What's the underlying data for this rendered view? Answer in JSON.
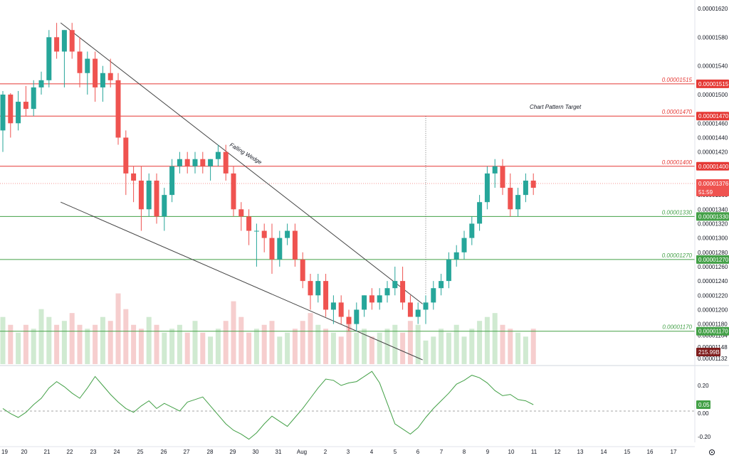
{
  "chart_data": [
    {
      "type": "candlestick",
      "title": "",
      "colors": {
        "up": "#26a69a",
        "down": "#ef5350",
        "volume_up": "#c8e6c9",
        "volume_down": "#f5c6c6",
        "resistance": "#e53935",
        "support": "#43a047",
        "trendline": "#444444"
      },
      "price_axis": {
        "ylim": [
          1.13e-05,
          1.62e-05
        ],
        "tick_labels": [
          "0.00001620",
          "0.00001580",
          "0.00001540",
          "0.00001500",
          "0.00001460",
          "0.00001440",
          "0.00001420",
          "0.00001360",
          "0.00001340",
          "0.00001320",
          "0.00001300",
          "0.00001280",
          "0.00001260",
          "0.00001240",
          "0.00001220",
          "0.00001200",
          "0.00001180",
          "0.00001164",
          "0.00001148",
          "0.00001132"
        ]
      },
      "time_axis": {
        "tick_labels": [
          "19",
          "20",
          "21",
          "22",
          "23",
          "24",
          "25",
          "26",
          "27",
          "28",
          "29",
          "30",
          "31",
          "Aug",
          "2",
          "3",
          "4",
          "5",
          "6",
          "7",
          "8",
          "9",
          "10",
          "11",
          "12",
          "13",
          "14",
          "15",
          "16",
          "17"
        ]
      },
      "levels": [
        {
          "name": "resistance",
          "value": 1.515e-05,
          "label": "0.00001515"
        },
        {
          "name": "resistance",
          "value": 1.47e-05,
          "label": "0.00001470"
        },
        {
          "name": "resistance",
          "value": 1.4e-05,
          "label": "0.00001400"
        },
        {
          "name": "support",
          "value": 1.33e-05,
          "label": "0.00001330"
        },
        {
          "name": "support",
          "value": 1.27e-05,
          "label": "0.00001270"
        },
        {
          "name": "support",
          "value": 1.17e-05,
          "label": "0.00001170"
        }
      ],
      "current_price": {
        "value": 1.376e-05,
        "label": "0.00001376",
        "countdown": "51:59"
      },
      "volume_label": "215.99B",
      "annotations": {
        "pattern": "Falling Wedge",
        "target": "Chart Pattern Target"
      },
      "trendlines": [
        {
          "name": "wedge-upper",
          "from": {
            "x": 21.6,
            "y": 1.6e-05
          },
          "to": {
            "x": 6.2,
            "y": 1.208e-05
          }
        },
        {
          "name": "wedge-lower",
          "from": {
            "x": 21.6,
            "y": 1.35e-05
          },
          "to": {
            "x": 6.2,
            "y": 1.13e-05
          }
        }
      ],
      "candles": [
        [
          1.45e-05,
          1.505e-05,
          1.42e-05,
          1.5e-05
        ],
        [
          1.5e-05,
          1.502e-05,
          1.44e-05,
          1.46e-05
        ],
        [
          1.46e-05,
          1.505e-05,
          1.45e-05,
          1.49e-05
        ],
        [
          1.49e-05,
          1.512e-05,
          1.47e-05,
          1.48e-05
        ],
        [
          1.48e-05,
          1.52e-05,
          1.47e-05,
          1.51e-05
        ],
        [
          1.51e-05,
          1.532e-05,
          1.5e-05,
          1.52e-05
        ],
        [
          1.52e-05,
          1.59e-05,
          1.51e-05,
          1.58e-05
        ],
        [
          1.58e-05,
          1.6e-05,
          1.55e-05,
          1.56e-05
        ],
        [
          1.56e-05,
          1.59e-05,
          1.51e-05,
          1.59e-05
        ],
        [
          1.59e-05,
          1.6e-05,
          1.55e-05,
          1.56e-05
        ],
        [
          1.56e-05,
          1.58e-05,
          1.51e-05,
          1.53e-05
        ],
        [
          1.53e-05,
          1.56e-05,
          1.5e-05,
          1.55e-05
        ],
        [
          1.55e-05,
          1.56e-05,
          1.49e-05,
          1.51e-05
        ],
        [
          1.51e-05,
          1.54e-05,
          1.49e-05,
          1.53e-05
        ],
        [
          1.53e-05,
          1.55e-05,
          1.51e-05,
          1.52e-05
        ],
        [
          1.52e-05,
          1.53e-05,
          1.43e-05,
          1.44e-05
        ],
        [
          1.44e-05,
          1.45e-05,
          1.36e-05,
          1.39e-05
        ],
        [
          1.39e-05,
          1.4e-05,
          1.35e-05,
          1.38e-05
        ],
        [
          1.38e-05,
          1.4e-05,
          1.31e-05,
          1.34e-05
        ],
        [
          1.34e-05,
          1.39e-05,
          1.33e-05,
          1.38e-05
        ],
        [
          1.38e-05,
          1.39e-05,
          1.32e-05,
          1.33e-05
        ],
        [
          1.33e-05,
          1.37e-05,
          1.31e-05,
          1.36e-05
        ],
        [
          1.36e-05,
          1.41e-05,
          1.35e-05,
          1.4e-05
        ],
        [
          1.4e-05,
          1.42e-05,
          1.39e-05,
          1.41e-05
        ],
        [
          1.41e-05,
          1.42e-05,
          1.39e-05,
          1.4e-05
        ],
        [
          1.4e-05,
          1.42e-05,
          1.39e-05,
          1.41e-05
        ],
        [
          1.41e-05,
          1.42e-05,
          1.39e-05,
          1.4e-05
        ],
        [
          1.4e-05,
          1.41e-05,
          1.38e-05,
          1.41e-05
        ],
        [
          1.41e-05,
          1.43e-05,
          1.4e-05,
          1.42e-05
        ],
        [
          1.42e-05,
          1.43e-05,
          1.38e-05,
          1.39e-05
        ],
        [
          1.39e-05,
          1.4e-05,
          1.33e-05,
          1.34e-05
        ],
        [
          1.34e-05,
          1.35e-05,
          1.31e-05,
          1.33e-05
        ],
        [
          1.33e-05,
          1.34e-05,
          1.29e-05,
          1.31e-05
        ],
        [
          1.31e-05,
          1.32e-05,
          1.26e-05,
          1.31e-05
        ],
        [
          1.31e-05,
          1.32e-05,
          1.28e-05,
          1.3e-05
        ],
        [
          1.3e-05,
          1.32e-05,
          1.25e-05,
          1.27e-05
        ],
        [
          1.27e-05,
          1.31e-05,
          1.26e-05,
          1.3e-05
        ],
        [
          1.3e-05,
          1.32e-05,
          1.29e-05,
          1.31e-05
        ],
        [
          1.31e-05,
          1.32e-05,
          1.26e-05,
          1.27e-05
        ],
        [
          1.27e-05,
          1.28e-05,
          1.23e-05,
          1.24e-05
        ],
        [
          1.24e-05,
          1.25e-05,
          1.2e-05,
          1.22e-05
        ],
        [
          1.22e-05,
          1.25e-05,
          1.21e-05,
          1.24e-05
        ],
        [
          1.24e-05,
          1.25e-05,
          1.19e-05,
          1.2e-05
        ],
        [
          1.2e-05,
          1.22e-05,
          1.18e-05,
          1.21e-05
        ],
        [
          1.21e-05,
          1.22e-05,
          1.18e-05,
          1.19e-05
        ],
        [
          1.19e-05,
          1.2e-05,
          1.17e-05,
          1.18e-05
        ],
        [
          1.18e-05,
          1.21e-05,
          1.17e-05,
          1.2e-05
        ],
        [
          1.2e-05,
          1.22e-05,
          1.19e-05,
          1.22e-05
        ],
        [
          1.22e-05,
          1.23e-05,
          1.2e-05,
          1.21e-05
        ],
        [
          1.21e-05,
          1.23e-05,
          1.2e-05,
          1.22e-05
        ],
        [
          1.22e-05,
          1.24e-05,
          1.21e-05,
          1.23e-05
        ],
        [
          1.23e-05,
          1.26e-05,
          1.22e-05,
          1.24e-05
        ],
        [
          1.24e-05,
          1.26e-05,
          1.2e-05,
          1.21e-05
        ],
        [
          1.21e-05,
          1.22e-05,
          1.19e-05,
          1.19e-05
        ],
        [
          1.19e-05,
          1.21e-05,
          1.18e-05,
          1.2e-05
        ],
        [
          1.2e-05,
          1.22e-05,
          1.18e-05,
          1.21e-05
        ],
        [
          1.21e-05,
          1.24e-05,
          1.2e-05,
          1.23e-05
        ],
        [
          1.23e-05,
          1.25e-05,
          1.22e-05,
          1.24e-05
        ],
        [
          1.24e-05,
          1.28e-05,
          1.23e-05,
          1.27e-05
        ],
        [
          1.27e-05,
          1.29e-05,
          1.26e-05,
          1.28e-05
        ],
        [
          1.28e-05,
          1.31e-05,
          1.27e-05,
          1.3e-05
        ],
        [
          1.3e-05,
          1.33e-05,
          1.29e-05,
          1.32e-05
        ],
        [
          1.32e-05,
          1.36e-05,
          1.31e-05,
          1.35e-05
        ],
        [
          1.35e-05,
          1.4e-05,
          1.34e-05,
          1.39e-05
        ],
        [
          1.39e-05,
          1.41e-05,
          1.37e-05,
          1.4e-05
        ],
        [
          1.4e-05,
          1.41e-05,
          1.36e-05,
          1.37e-05
        ],
        [
          1.37e-05,
          1.39e-05,
          1.33e-05,
          1.34e-05
        ],
        [
          1.34e-05,
          1.37e-05,
          1.33e-05,
          1.36e-05
        ],
        [
          1.36e-05,
          1.39e-05,
          1.35e-05,
          1.38e-05
        ],
        [
          1.38e-05,
          1.39e-05,
          1.36e-05,
          1.37e-05
        ]
      ],
      "volume": [
        0.6,
        0.5,
        0.4,
        0.5,
        0.45,
        0.7,
        0.6,
        0.5,
        0.55,
        0.65,
        0.5,
        0.45,
        0.5,
        0.6,
        0.55,
        0.9,
        0.7,
        0.5,
        0.45,
        0.6,
        0.5,
        0.4,
        0.45,
        0.5,
        0.4,
        0.55,
        0.4,
        0.35,
        0.45,
        0.55,
        0.8,
        0.6,
        0.4,
        0.45,
        0.5,
        0.55,
        0.35,
        0.4,
        0.45,
        0.55,
        0.65,
        0.5,
        0.45,
        0.4,
        0.35,
        0.55,
        0.4,
        0.45,
        0.35,
        0.4,
        0.45,
        0.5,
        0.4,
        0.55,
        0.5,
        0.3,
        0.35,
        0.45,
        0.4,
        0.5,
        0.35,
        0.45,
        0.55,
        0.6,
        0.65,
        0.5,
        0.45,
        0.4,
        0.35,
        0.45
      ],
      "oscillator": {
        "axis_labels": [
          "0.20",
          "-0.20"
        ],
        "value_label": "0.05",
        "zero_label": "0.00",
        "values": [
          0.02,
          -0.02,
          -0.05,
          -0.01,
          0.05,
          0.1,
          0.18,
          0.23,
          0.19,
          0.14,
          0.1,
          0.18,
          0.27,
          0.2,
          0.13,
          0.07,
          0.02,
          -0.01,
          0.04,
          0.08,
          0.02,
          0.06,
          0.03,
          0.0,
          0.07,
          0.09,
          0.11,
          0.04,
          -0.03,
          -0.1,
          -0.15,
          -0.18,
          -0.22,
          -0.17,
          -0.1,
          -0.04,
          -0.08,
          -0.12,
          -0.05,
          0.02,
          0.1,
          0.18,
          0.25,
          0.24,
          0.2,
          0.22,
          0.23,
          0.27,
          0.31,
          0.22,
          0.06,
          -0.1,
          -0.14,
          -0.18,
          -0.13,
          -0.05,
          0.02,
          0.08,
          0.14,
          0.21,
          0.24,
          0.28,
          0.26,
          0.22,
          0.16,
          0.12,
          0.13,
          0.09,
          0.08,
          0.05
        ]
      }
    }
  ]
}
